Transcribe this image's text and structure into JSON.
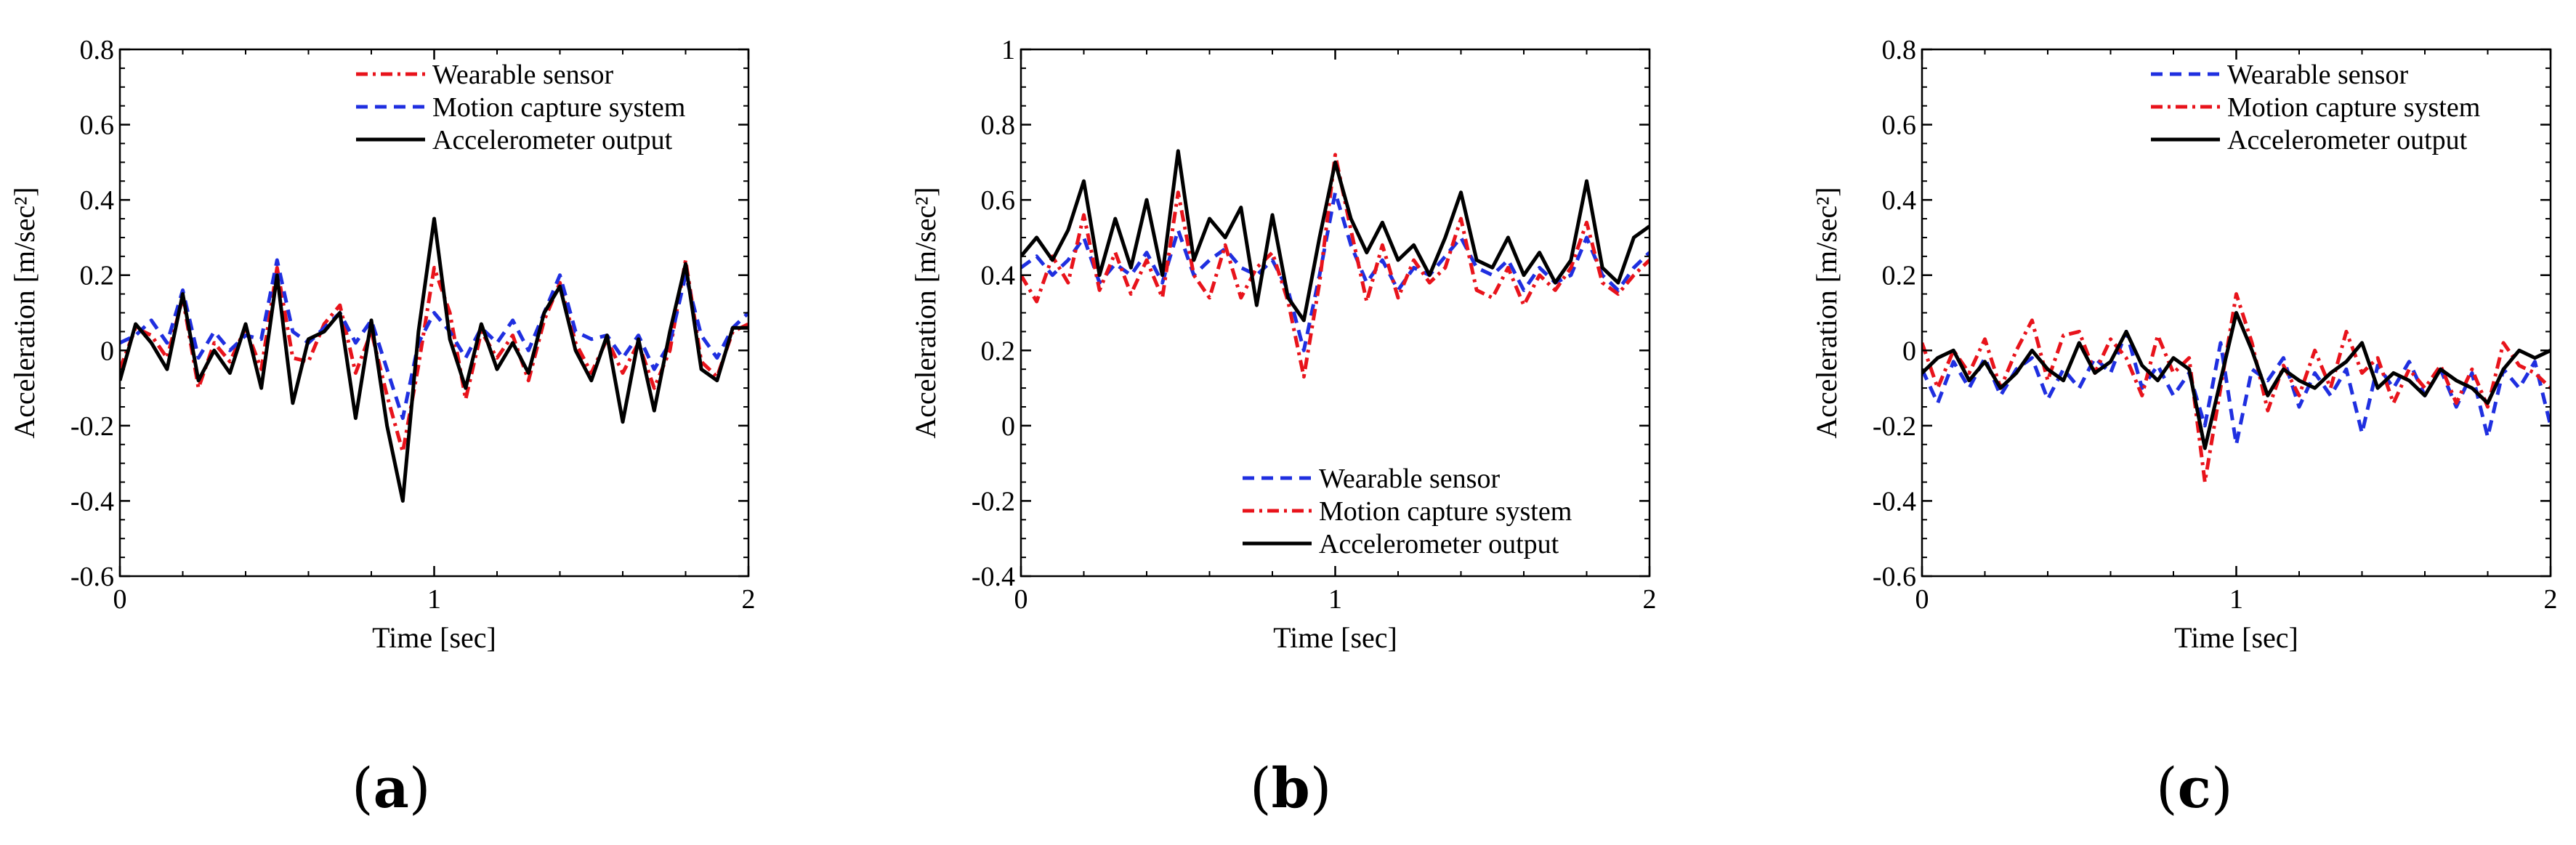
{
  "figure": {
    "captions": [
      {
        "open": "(",
        "letter": "a",
        "close": ")"
      },
      {
        "open": "(",
        "letter": "b",
        "close": ")"
      },
      {
        "open": "(",
        "letter": "c",
        "close": ")"
      }
    ]
  },
  "chart_data": [
    {
      "type": "line",
      "panel": "a",
      "xlabel": "Time [sec]",
      "ylabel": "Acceleration [m/sec²]",
      "xlim": [
        0,
        2
      ],
      "ylim": [
        -0.6,
        0.8
      ],
      "xticks": [
        0,
        1,
        2
      ],
      "yticks": [
        -0.6,
        -0.4,
        -0.2,
        0,
        0.2,
        0.4,
        0.6,
        0.8
      ],
      "ytick_labels": [
        "-0.6",
        "-0.4",
        "-0.2",
        "0",
        "0.2",
        "0.4",
        "0.6",
        "0.8"
      ],
      "legend_position": "top-right",
      "series": [
        {
          "name": "Wearable sensor",
          "color": "#e8131b",
          "dash": "dash-dot",
          "x": [
            0,
            0.05,
            0.1,
            0.15,
            0.2,
            0.25,
            0.3,
            0.35,
            0.4,
            0.45,
            0.5,
            0.55,
            0.6,
            0.65,
            0.7,
            0.75,
            0.8,
            0.85,
            0.9,
            0.95,
            1.0,
            1.05,
            1.1,
            1.15,
            1.2,
            1.25,
            1.3,
            1.35,
            1.4,
            1.45,
            1.5,
            1.55,
            1.6,
            1.65,
            1.7,
            1.75,
            1.8,
            1.85,
            1.9,
            1.95,
            2.0
          ],
          "y": [
            -0.05,
            0.06,
            0.04,
            -0.02,
            0.14,
            -0.1,
            0.02,
            -0.03,
            0.06,
            -0.05,
            0.22,
            -0.02,
            -0.03,
            0.07,
            0.12,
            -0.06,
            0.05,
            -0.12,
            -0.27,
            -0.04,
            0.22,
            0.1,
            -0.13,
            0.05,
            -0.02,
            0.04,
            -0.08,
            0.08,
            0.18,
            0.02,
            -0.06,
            0.03,
            -0.06,
            0.02,
            -0.1,
            0.0,
            0.24,
            -0.03,
            -0.07,
            0.05,
            0.07
          ]
        },
        {
          "name": "Motion capture system",
          "color": "#1f2fe0",
          "dash": "dash",
          "x": [
            0,
            0.05,
            0.1,
            0.15,
            0.2,
            0.25,
            0.3,
            0.35,
            0.4,
            0.45,
            0.5,
            0.55,
            0.6,
            0.65,
            0.7,
            0.75,
            0.8,
            0.85,
            0.9,
            0.95,
            1.0,
            1.05,
            1.1,
            1.15,
            1.2,
            1.25,
            1.3,
            1.35,
            1.4,
            1.45,
            1.5,
            1.55,
            1.6,
            1.65,
            1.7,
            1.75,
            1.8,
            1.85,
            1.9,
            1.95,
            2.0
          ],
          "y": [
            0.02,
            0.04,
            0.08,
            0.02,
            0.16,
            -0.02,
            0.05,
            0.0,
            0.04,
            0.03,
            0.24,
            0.05,
            0.02,
            0.06,
            0.1,
            0.02,
            0.08,
            -0.05,
            -0.18,
            0.02,
            0.1,
            0.05,
            -0.02,
            0.06,
            0.02,
            0.08,
            0.0,
            0.1,
            0.2,
            0.05,
            0.03,
            0.04,
            -0.02,
            0.04,
            -0.05,
            0.02,
            0.2,
            0.04,
            -0.02,
            0.06,
            0.1
          ]
        },
        {
          "name": "Accelerometer output",
          "color": "#000000",
          "dash": "solid",
          "x": [
            0,
            0.05,
            0.1,
            0.15,
            0.2,
            0.25,
            0.3,
            0.35,
            0.4,
            0.45,
            0.5,
            0.55,
            0.6,
            0.65,
            0.7,
            0.75,
            0.8,
            0.85,
            0.9,
            0.95,
            1.0,
            1.05,
            1.1,
            1.15,
            1.2,
            1.25,
            1.3,
            1.35,
            1.4,
            1.45,
            1.5,
            1.55,
            1.6,
            1.65,
            1.7,
            1.75,
            1.8,
            1.85,
            1.9,
            1.95,
            2.0
          ],
          "y": [
            -0.08,
            0.07,
            0.02,
            -0.05,
            0.15,
            -0.08,
            0.0,
            -0.06,
            0.07,
            -0.1,
            0.2,
            -0.14,
            0.03,
            0.05,
            0.1,
            -0.18,
            0.08,
            -0.2,
            -0.4,
            0.05,
            0.35,
            0.03,
            -0.1,
            0.07,
            -0.05,
            0.02,
            -0.06,
            0.1,
            0.17,
            0.0,
            -0.08,
            0.04,
            -0.19,
            0.03,
            -0.16,
            0.05,
            0.23,
            -0.05,
            -0.08,
            0.06,
            0.06
          ]
        }
      ]
    },
    {
      "type": "line",
      "panel": "b",
      "xlabel": "Time [sec]",
      "ylabel": "Acceleration [m/sec²]",
      "xlim": [
        0,
        2
      ],
      "ylim": [
        -0.4,
        1.0
      ],
      "xticks": [
        0,
        1,
        2
      ],
      "yticks": [
        -0.4,
        -0.2,
        0,
        0.2,
        0.4,
        0.6,
        0.8,
        1.0
      ],
      "ytick_labels": [
        "-0.4",
        "-0.2",
        "0",
        "0.2",
        "0.4",
        "0.6",
        "0.8",
        "1"
      ],
      "legend_position": "bottom-right",
      "series": [
        {
          "name": "Wearable sensor",
          "color": "#1f2fe0",
          "dash": "dash",
          "x": [
            0,
            0.05,
            0.1,
            0.15,
            0.2,
            0.25,
            0.3,
            0.35,
            0.4,
            0.45,
            0.5,
            0.55,
            0.6,
            0.65,
            0.7,
            0.75,
            0.8,
            0.85,
            0.9,
            0.95,
            1.0,
            1.05,
            1.1,
            1.15,
            1.2,
            1.25,
            1.3,
            1.35,
            1.4,
            1.45,
            1.5,
            1.55,
            1.6,
            1.65,
            1.7,
            1.75,
            1.8,
            1.85,
            1.9,
            1.95,
            2.0
          ],
          "y": [
            0.42,
            0.45,
            0.4,
            0.44,
            0.5,
            0.38,
            0.43,
            0.4,
            0.46,
            0.38,
            0.52,
            0.4,
            0.44,
            0.47,
            0.42,
            0.4,
            0.44,
            0.36,
            0.2,
            0.4,
            0.62,
            0.48,
            0.38,
            0.44,
            0.36,
            0.42,
            0.4,
            0.45,
            0.5,
            0.42,
            0.4,
            0.44,
            0.36,
            0.42,
            0.38,
            0.4,
            0.5,
            0.4,
            0.36,
            0.42,
            0.46
          ]
        },
        {
          "name": "Motion capture system",
          "color": "#e8131b",
          "dash": "dash-dot",
          "x": [
            0,
            0.05,
            0.1,
            0.15,
            0.2,
            0.25,
            0.3,
            0.35,
            0.4,
            0.45,
            0.5,
            0.55,
            0.6,
            0.65,
            0.7,
            0.75,
            0.8,
            0.85,
            0.9,
            0.95,
            1.0,
            1.05,
            1.1,
            1.15,
            1.2,
            1.25,
            1.3,
            1.35,
            1.4,
            1.45,
            1.5,
            1.55,
            1.6,
            1.65,
            1.7,
            1.75,
            1.8,
            1.85,
            1.9,
            1.95,
            2.0
          ],
          "y": [
            0.4,
            0.33,
            0.45,
            0.38,
            0.56,
            0.36,
            0.46,
            0.35,
            0.44,
            0.34,
            0.62,
            0.4,
            0.34,
            0.48,
            0.34,
            0.42,
            0.46,
            0.33,
            0.13,
            0.38,
            0.72,
            0.52,
            0.33,
            0.48,
            0.34,
            0.44,
            0.38,
            0.42,
            0.55,
            0.36,
            0.34,
            0.42,
            0.32,
            0.4,
            0.36,
            0.42,
            0.54,
            0.38,
            0.35,
            0.4,
            0.44
          ]
        },
        {
          "name": "Accelerometer output",
          "color": "#000000",
          "dash": "solid",
          "x": [
            0,
            0.05,
            0.1,
            0.15,
            0.2,
            0.25,
            0.3,
            0.35,
            0.4,
            0.45,
            0.5,
            0.55,
            0.6,
            0.65,
            0.7,
            0.75,
            0.8,
            0.85,
            0.9,
            0.95,
            1.0,
            1.05,
            1.1,
            1.15,
            1.2,
            1.25,
            1.3,
            1.35,
            1.4,
            1.45,
            1.5,
            1.55,
            1.6,
            1.65,
            1.7,
            1.75,
            1.8,
            1.85,
            1.9,
            1.95,
            2.0
          ],
          "y": [
            0.45,
            0.5,
            0.44,
            0.52,
            0.65,
            0.4,
            0.55,
            0.42,
            0.6,
            0.4,
            0.73,
            0.44,
            0.55,
            0.5,
            0.58,
            0.32,
            0.56,
            0.34,
            0.28,
            0.5,
            0.7,
            0.55,
            0.46,
            0.54,
            0.44,
            0.48,
            0.4,
            0.5,
            0.62,
            0.44,
            0.42,
            0.5,
            0.4,
            0.46,
            0.38,
            0.44,
            0.65,
            0.42,
            0.38,
            0.5,
            0.53
          ]
        }
      ]
    },
    {
      "type": "line",
      "panel": "c",
      "xlabel": "Time [sec]",
      "ylabel": "Acceleration [m/sec²]",
      "xlim": [
        0,
        2
      ],
      "ylim": [
        -0.6,
        0.8
      ],
      "xticks": [
        0,
        1,
        2
      ],
      "yticks": [
        -0.6,
        -0.4,
        -0.2,
        0,
        0.2,
        0.4,
        0.6,
        0.8
      ],
      "ytick_labels": [
        "-0.6",
        "-0.4",
        "-0.2",
        "0",
        "0.2",
        "0.4",
        "0.6",
        "0.8"
      ],
      "legend_position": "top-right",
      "series": [
        {
          "name": "Wearable sensor",
          "color": "#1f2fe0",
          "dash": "dash",
          "x": [
            0,
            0.05,
            0.1,
            0.15,
            0.2,
            0.25,
            0.3,
            0.35,
            0.4,
            0.45,
            0.5,
            0.55,
            0.6,
            0.65,
            0.7,
            0.75,
            0.8,
            0.85,
            0.9,
            0.95,
            1.0,
            1.05,
            1.1,
            1.15,
            1.2,
            1.25,
            1.3,
            1.35,
            1.4,
            1.45,
            1.5,
            1.55,
            1.6,
            1.65,
            1.7,
            1.75,
            1.8,
            1.85,
            1.9,
            1.95,
            2.0
          ],
          "y": [
            -0.05,
            -0.14,
            -0.03,
            -0.1,
            -0.02,
            -0.12,
            -0.05,
            -0.02,
            -0.13,
            -0.05,
            -0.1,
            -0.02,
            -0.06,
            0.05,
            -0.1,
            -0.04,
            -0.12,
            -0.06,
            -0.2,
            0.02,
            -0.25,
            -0.05,
            -0.08,
            -0.02,
            -0.15,
            -0.06,
            -0.12,
            -0.05,
            -0.22,
            -0.04,
            -0.1,
            -0.03,
            -0.12,
            -0.05,
            -0.15,
            -0.06,
            -0.23,
            -0.05,
            -0.1,
            -0.03,
            -0.2
          ]
        },
        {
          "name": "Motion capture system",
          "color": "#e8131b",
          "dash": "dash-dot",
          "x": [
            0,
            0.05,
            0.1,
            0.15,
            0.2,
            0.25,
            0.3,
            0.35,
            0.4,
            0.45,
            0.5,
            0.55,
            0.6,
            0.65,
            0.7,
            0.75,
            0.8,
            0.85,
            0.9,
            0.95,
            1.0,
            1.05,
            1.1,
            1.15,
            1.2,
            1.25,
            1.3,
            1.35,
            1.4,
            1.45,
            1.5,
            1.55,
            1.6,
            1.65,
            1.7,
            1.75,
            1.8,
            1.85,
            1.9,
            1.95,
            2.0
          ],
          "y": [
            0.02,
            -0.1,
            0.0,
            -0.06,
            0.03,
            -0.1,
            0.0,
            0.08,
            -0.08,
            0.04,
            0.05,
            -0.06,
            0.03,
            -0.02,
            -0.12,
            0.04,
            -0.06,
            -0.02,
            -0.35,
            -0.1,
            0.15,
            0.02,
            -0.16,
            -0.04,
            -0.12,
            0.0,
            -0.1,
            0.05,
            -0.06,
            -0.02,
            -0.14,
            -0.05,
            -0.1,
            -0.04,
            -0.14,
            -0.05,
            -0.15,
            0.02,
            -0.04,
            -0.06,
            -0.1
          ]
        },
        {
          "name": "Accelerometer output",
          "color": "#000000",
          "dash": "solid",
          "x": [
            0,
            0.05,
            0.1,
            0.15,
            0.2,
            0.25,
            0.3,
            0.35,
            0.4,
            0.45,
            0.5,
            0.55,
            0.6,
            0.65,
            0.7,
            0.75,
            0.8,
            0.85,
            0.9,
            0.95,
            1.0,
            1.05,
            1.1,
            1.15,
            1.2,
            1.25,
            1.3,
            1.35,
            1.4,
            1.45,
            1.5,
            1.55,
            1.6,
            1.65,
            1.7,
            1.75,
            1.8,
            1.85,
            1.9,
            1.95,
            2.0
          ],
          "y": [
            -0.06,
            -0.02,
            0.0,
            -0.08,
            -0.03,
            -0.1,
            -0.06,
            0.0,
            -0.05,
            -0.08,
            0.02,
            -0.06,
            -0.03,
            0.05,
            -0.04,
            -0.08,
            -0.02,
            -0.05,
            -0.26,
            -0.08,
            0.1,
            0.0,
            -0.12,
            -0.05,
            -0.08,
            -0.1,
            -0.06,
            -0.03,
            0.02,
            -0.1,
            -0.06,
            -0.08,
            -0.12,
            -0.05,
            -0.08,
            -0.1,
            -0.14,
            -0.05,
            0.0,
            -0.02,
            0.0
          ]
        }
      ]
    }
  ]
}
